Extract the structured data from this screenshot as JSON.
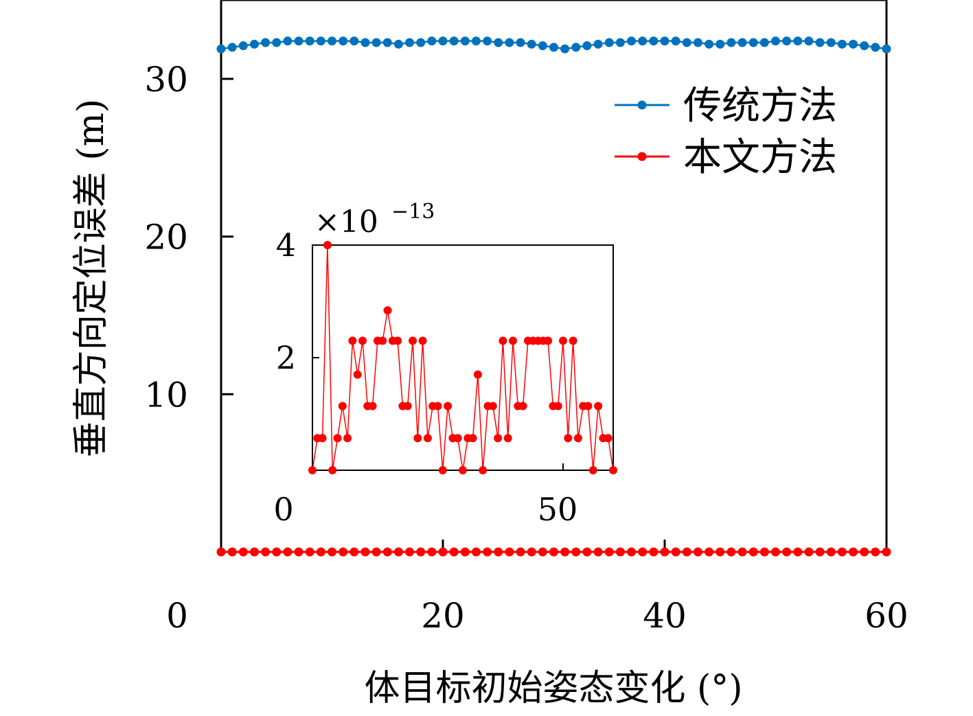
{
  "chart_data": [
    {
      "type": "line",
      "xlabel": "体目标初始姿态变化 (°)",
      "ylabel": "垂直方向定位误差 (m)",
      "xlim": [
        0,
        60
      ],
      "ylim": [
        0,
        35
      ],
      "xticks": [
        0,
        20,
        40,
        60
      ],
      "yticks": [
        10,
        20,
        30
      ],
      "legend_position": "top-right",
      "series": [
        {
          "name": "传统方法",
          "color": "#0072bd",
          "x": [
            0,
            1,
            2,
            3,
            4,
            5,
            6,
            7,
            8,
            9,
            10,
            11,
            12,
            13,
            14,
            15,
            16,
            17,
            18,
            19,
            20,
            21,
            22,
            23,
            24,
            25,
            26,
            27,
            28,
            29,
            30,
            31,
            32,
            33,
            34,
            35,
            36,
            37,
            38,
            39,
            40,
            41,
            42,
            43,
            44,
            45,
            46,
            47,
            48,
            49,
            50,
            51,
            52,
            53,
            54,
            55,
            56,
            57,
            58,
            59,
            60
          ],
          "values": [
            31.9,
            32.0,
            32.1,
            32.2,
            32.3,
            32.3,
            32.4,
            32.4,
            32.4,
            32.4,
            32.4,
            32.4,
            32.4,
            32.3,
            32.3,
            32.3,
            32.2,
            32.3,
            32.3,
            32.4,
            32.4,
            32.4,
            32.4,
            32.4,
            32.4,
            32.3,
            32.3,
            32.3,
            32.2,
            32.1,
            32.0,
            31.9,
            32.0,
            32.1,
            32.2,
            32.3,
            32.3,
            32.4,
            32.4,
            32.4,
            32.4,
            32.4,
            32.3,
            32.3,
            32.2,
            32.2,
            32.3,
            32.3,
            32.3,
            32.3,
            32.4,
            32.4,
            32.4,
            32.4,
            32.3,
            32.3,
            32.2,
            32.2,
            32.1,
            32.0,
            31.9
          ]
        },
        {
          "name": "本文方法",
          "color": "#ff0000",
          "x": [
            0,
            1,
            2,
            3,
            4,
            5,
            6,
            7,
            8,
            9,
            10,
            11,
            12,
            13,
            14,
            15,
            16,
            17,
            18,
            19,
            20,
            21,
            22,
            23,
            24,
            25,
            26,
            27,
            28,
            29,
            30,
            31,
            32,
            33,
            34,
            35,
            36,
            37,
            38,
            39,
            40,
            41,
            42,
            43,
            44,
            45,
            46,
            47,
            48,
            49,
            50,
            51,
            52,
            53,
            54,
            55,
            56,
            57,
            58,
            59,
            60
          ],
          "values": [
            0,
            0,
            0,
            0,
            0,
            0,
            0,
            0,
            0,
            0,
            0,
            0,
            0,
            0,
            0,
            0,
            0,
            0,
            0,
            0,
            0,
            0,
            0,
            0,
            0,
            0,
            0,
            0,
            0,
            0,
            0,
            0,
            0,
            0,
            0,
            0,
            0,
            0,
            0,
            0,
            0,
            0,
            0,
            0,
            0,
            0,
            0,
            0,
            0,
            0,
            0,
            0,
            0,
            0,
            0,
            0,
            0,
            0,
            0,
            0,
            0
          ]
        }
      ]
    },
    {
      "type": "line",
      "inset": true,
      "exponent_label": "×10",
      "exponent": "−13",
      "xlim": [
        0,
        60
      ],
      "ylim": [
        0,
        4
      ],
      "xticks": [
        0,
        50
      ],
      "yticks": [
        2,
        4
      ],
      "series": [
        {
          "color": "#ff0000",
          "x": [
            0,
            1,
            2,
            3,
            4,
            5,
            6,
            7,
            8,
            9,
            10,
            11,
            12,
            13,
            14,
            15,
            16,
            17,
            18,
            19,
            20,
            21,
            22,
            23,
            24,
            25,
            26,
            27,
            28,
            29,
            30,
            31,
            32,
            33,
            34,
            35,
            36,
            37,
            38,
            39,
            40,
            41,
            42,
            43,
            44,
            45,
            46,
            47,
            48,
            49,
            50,
            51,
            52,
            53,
            54,
            55,
            56,
            57,
            58,
            59,
            60
          ],
          "values": [
            0,
            0.57,
            0.57,
            4.0,
            0,
            0.57,
            1.14,
            0.57,
            2.3,
            1.7,
            2.3,
            1.14,
            1.14,
            2.3,
            2.3,
            2.84,
            2.3,
            2.3,
            1.14,
            1.14,
            2.3,
            0.57,
            2.3,
            0.57,
            1.14,
            1.14,
            0,
            1.14,
            0.57,
            0.57,
            0,
            0.57,
            0.57,
            1.7,
            0,
            1.14,
            1.14,
            0.57,
            2.3,
            0.57,
            2.3,
            1.14,
            1.14,
            2.3,
            2.3,
            2.3,
            2.3,
            2.3,
            1.14,
            1.14,
            2.3,
            0.57,
            2.3,
            0.57,
            1.14,
            1.14,
            0,
            1.14,
            0.57,
            0.57,
            0
          ]
        }
      ]
    }
  ]
}
